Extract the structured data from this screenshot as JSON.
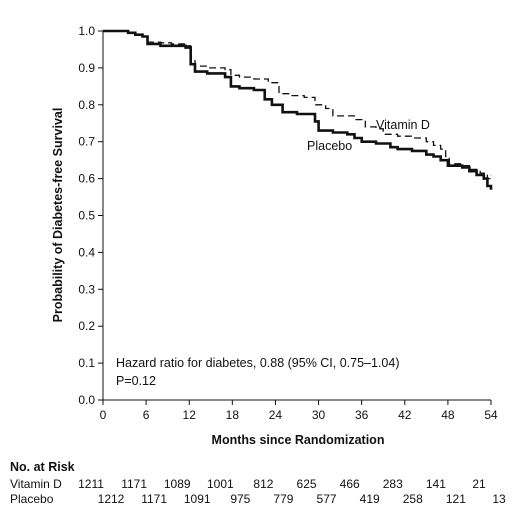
{
  "chart_data": {
    "type": "line",
    "ylabel": "Probability of Diabetes-free Survival",
    "xlabel": "Months since Randomization",
    "xlim": [
      0,
      54
    ],
    "ylim": [
      0.0,
      1.0
    ],
    "x_ticks": [
      0,
      6,
      12,
      18,
      24,
      30,
      36,
      42,
      48,
      54
    ],
    "y_ticks": [
      "0.0",
      "0.1",
      "0.2",
      "0.3",
      "0.4",
      "0.5",
      "0.6",
      "0.7",
      "0.8",
      "0.9",
      "1.0"
    ],
    "grid": false,
    "series": [
      {
        "name": "Vitamin D",
        "style": "dashed",
        "color": "#111111",
        "points": [
          [
            0,
            1.0
          ],
          [
            2,
            1.0
          ],
          [
            3.5,
            0.995
          ],
          [
            4.5,
            0.99
          ],
          [
            5.5,
            0.985
          ],
          [
            6.2,
            0.97
          ],
          [
            8,
            0.968
          ],
          [
            9.5,
            0.965
          ],
          [
            11.5,
            0.96
          ],
          [
            12.2,
            0.92
          ],
          [
            12.8,
            0.905
          ],
          [
            14.5,
            0.9
          ],
          [
            17,
            0.895
          ],
          [
            17.8,
            0.88
          ],
          [
            19,
            0.875
          ],
          [
            21,
            0.87
          ],
          [
            23,
            0.86
          ],
          [
            24.5,
            0.83
          ],
          [
            26,
            0.825
          ],
          [
            28,
            0.82
          ],
          [
            29.5,
            0.8
          ],
          [
            31,
            0.79
          ],
          [
            32,
            0.77
          ],
          [
            35,
            0.76
          ],
          [
            36.5,
            0.74
          ],
          [
            38,
            0.735
          ],
          [
            39,
            0.72
          ],
          [
            41,
            0.715
          ],
          [
            43,
            0.71
          ],
          [
            45,
            0.7
          ],
          [
            46,
            0.69
          ],
          [
            47,
            0.68
          ],
          [
            47.7,
            0.66
          ],
          [
            48.2,
            0.64
          ],
          [
            50,
            0.635
          ],
          [
            51,
            0.625
          ],
          [
            52.5,
            0.615
          ],
          [
            53.5,
            0.6
          ],
          [
            54,
            0.61
          ]
        ]
      },
      {
        "name": "Placebo",
        "style": "solid",
        "color": "#111111",
        "points": [
          [
            0,
            1.0
          ],
          [
            2,
            1.0
          ],
          [
            3.5,
            0.995
          ],
          [
            4.5,
            0.99
          ],
          [
            5.5,
            0.985
          ],
          [
            6.2,
            0.965
          ],
          [
            8,
            0.96
          ],
          [
            9.5,
            0.96
          ],
          [
            11.5,
            0.955
          ],
          [
            12.2,
            0.91
          ],
          [
            12.8,
            0.89
          ],
          [
            14.5,
            0.885
          ],
          [
            17,
            0.875
          ],
          [
            17.8,
            0.85
          ],
          [
            19,
            0.845
          ],
          [
            21,
            0.84
          ],
          [
            22.5,
            0.815
          ],
          [
            23.5,
            0.8
          ],
          [
            25,
            0.78
          ],
          [
            27,
            0.775
          ],
          [
            29.5,
            0.755
          ],
          [
            30,
            0.73
          ],
          [
            32,
            0.725
          ],
          [
            34,
            0.72
          ],
          [
            35,
            0.71
          ],
          [
            36,
            0.7
          ],
          [
            38,
            0.695
          ],
          [
            40,
            0.685
          ],
          [
            41,
            0.68
          ],
          [
            43,
            0.675
          ],
          [
            45,
            0.665
          ],
          [
            46,
            0.66
          ],
          [
            47,
            0.65
          ],
          [
            48,
            0.635
          ],
          [
            50,
            0.63
          ],
          [
            51,
            0.62
          ],
          [
            52,
            0.61
          ],
          [
            53,
            0.6
          ],
          [
            53.5,
            0.58
          ],
          [
            54,
            0.57
          ]
        ]
      }
    ],
    "series_labels": [
      "Vitamin D",
      "Placebo"
    ],
    "annotations": {
      "line1": "Hazard ratio for diabetes, 0.88 (95% CI, 0.75–1.04)",
      "line2": "P=0.12"
    },
    "at_risk": {
      "title": "No. at Risk",
      "rows": [
        {
          "label": "Vitamin D",
          "values": [
            "1211",
            "1171",
            "1089",
            "1001",
            "812",
            "625",
            "466",
            "283",
            "141",
            "21"
          ]
        },
        {
          "label": "Placebo",
          "values": [
            "1212",
            "1171",
            "1091",
            "975",
            "779",
            "577",
            "419",
            "258",
            "121",
            "13"
          ]
        }
      ]
    }
  }
}
